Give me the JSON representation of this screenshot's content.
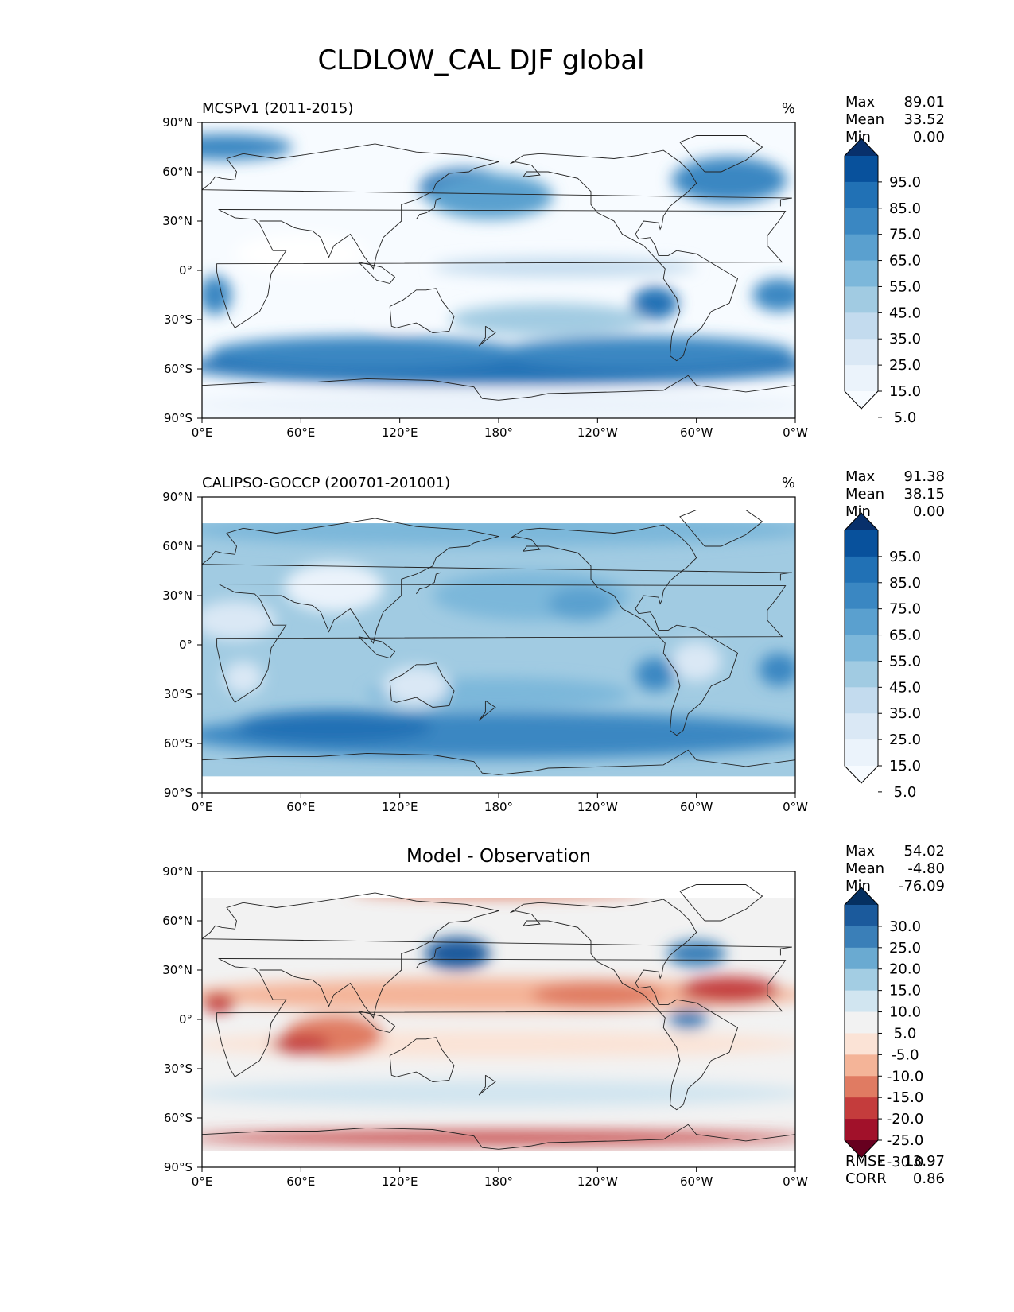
{
  "figure": {
    "title": "CLDLOW_CAL DJF global"
  },
  "panels": [
    {
      "id": "model",
      "left_label": "MCSPv1 (2011-2015)",
      "center_label": "",
      "units": "%",
      "stats": [
        {
          "label": "Max",
          "value": "89.01"
        },
        {
          "label": "Mean",
          "value": "33.52"
        },
        {
          "label": "Min",
          "value": "0.00"
        }
      ],
      "colorbar_ticks": [
        "95.0",
        "85.0",
        "75.0",
        "65.0",
        "55.0",
        "45.0",
        "35.0",
        "25.0",
        "15.0",
        "5.0"
      ],
      "colorbar_colors": [
        "#08306b",
        "#08519c",
        "#2171b5",
        "#3a87c2",
        "#5aa0cf",
        "#7cb7da",
        "#a1cbe2",
        "#c3dbee",
        "#dae8f5",
        "#ebf3fb",
        "#f7fbff"
      ],
      "bottom_stats": []
    },
    {
      "id": "obs",
      "left_label": "CALIPSO-GOCCP (200701-201001)",
      "center_label": "",
      "units": "%",
      "stats": [
        {
          "label": "Max",
          "value": "91.38"
        },
        {
          "label": "Mean",
          "value": "38.15"
        },
        {
          "label": "Min",
          "value": "0.00"
        }
      ],
      "colorbar_ticks": [
        "95.0",
        "85.0",
        "75.0",
        "65.0",
        "55.0",
        "45.0",
        "35.0",
        "25.0",
        "15.0",
        "5.0"
      ],
      "colorbar_colors": [
        "#08306b",
        "#08519c",
        "#2171b5",
        "#3a87c2",
        "#5aa0cf",
        "#7cb7da",
        "#a1cbe2",
        "#c3dbee",
        "#dae8f5",
        "#ebf3fb",
        "#f7fbff"
      ],
      "bottom_stats": []
    },
    {
      "id": "diff",
      "left_label": "",
      "center_label": "Model - Observation",
      "units": "",
      "stats": [
        {
          "label": "Max",
          "value": "54.02"
        },
        {
          "label": "Mean",
          "value": "-4.80"
        },
        {
          "label": "Min",
          "value": "-76.09"
        }
      ],
      "colorbar_ticks": [
        "30.0",
        "25.0",
        "20.0",
        "15.0",
        "10.0",
        "5.0",
        "-5.0",
        "-10.0",
        "-15.0",
        "-20.0",
        "-25.0",
        "-30.0"
      ],
      "colorbar_colors": [
        "#053061",
        "#1b5a9c",
        "#3a7fb8",
        "#6aaad1",
        "#a3cde3",
        "#d1e5f0",
        "#f2f2f2",
        "#fbe3d6",
        "#f4b498",
        "#e07b62",
        "#c43c3c",
        "#a1112a",
        "#67001f"
      ],
      "bottom_stats": [
        {
          "label": "RMSE",
          "value": "13.97"
        },
        {
          "label": "CORR",
          "value": "0.86"
        }
      ]
    }
  ],
  "axes": {
    "lon_ticks": [
      "0°E",
      "60°E",
      "120°E",
      "180°",
      "120°W",
      "60°W",
      "0°W"
    ],
    "lat_ticks": [
      "90°N",
      "60°N",
      "30°N",
      "0°",
      "30°S",
      "60°S",
      "90°S"
    ]
  },
  "map_fields": {
    "model": {
      "background": "#f7fbff",
      "blobs": [
        {
          "lon": 180,
          "lat": -58,
          "rx": 190,
          "ry": 12,
          "c": "#2171b5"
        },
        {
          "lon": 100,
          "lat": -50,
          "rx": 95,
          "ry": 10,
          "c": "#3a87c2"
        },
        {
          "lon": 270,
          "lat": -50,
          "rx": 90,
          "ry": 10,
          "c": "#3a87c2"
        },
        {
          "lon": 180,
          "lat": -82,
          "rx": 190,
          "ry": 8,
          "c": "#ebf3fb"
        },
        {
          "lon": 160,
          "lat": 50,
          "rx": 28,
          "ry": 12,
          "c": "#2171b5"
        },
        {
          "lon": 175,
          "lat": 45,
          "rx": 38,
          "ry": 14,
          "c": "#5aa0cf"
        },
        {
          "lon": 320,
          "lat": 55,
          "rx": 35,
          "ry": 14,
          "c": "#3a87c2"
        },
        {
          "lon": 15,
          "lat": 75,
          "rx": 40,
          "ry": 8,
          "c": "#3a87c2"
        },
        {
          "lon": 275,
          "lat": -20,
          "rx": 14,
          "ry": 10,
          "c": "#2171b5"
        },
        {
          "lon": 350,
          "lat": -15,
          "rx": 16,
          "ry": 10,
          "c": "#3a87c2"
        },
        {
          "lon": 8,
          "lat": -15,
          "rx": 10,
          "ry": 12,
          "c": "#3a87c2"
        },
        {
          "lon": 220,
          "lat": 2,
          "rx": 80,
          "ry": 6,
          "c": "#c3dbee"
        },
        {
          "lon": 60,
          "lat": 10,
          "rx": 40,
          "ry": 12,
          "c": "#ffffff"
        },
        {
          "lon": 120,
          "lat": -25,
          "rx": 18,
          "ry": 10,
          "c": "#f7fbff"
        },
        {
          "lon": 210,
          "lat": -30,
          "rx": 60,
          "ry": 10,
          "c": "#a1cbe2"
        }
      ]
    },
    "obs": {
      "background": "#a1cbe2",
      "blobs": [
        {
          "lon": 180,
          "lat": -55,
          "rx": 190,
          "ry": 14,
          "c": "#3a87c2"
        },
        {
          "lon": 80,
          "lat": -50,
          "rx": 60,
          "ry": 10,
          "c": "#2171b5"
        },
        {
          "lon": 180,
          "lat": -30,
          "rx": 80,
          "ry": 10,
          "c": "#7cb7da"
        },
        {
          "lon": 200,
          "lat": 30,
          "rx": 60,
          "ry": 15,
          "c": "#7cb7da"
        },
        {
          "lon": 230,
          "lat": 25,
          "rx": 20,
          "ry": 10,
          "c": "#5aa0cf"
        },
        {
          "lon": 275,
          "lat": -18,
          "rx": 12,
          "ry": 10,
          "c": "#3a87c2"
        },
        {
          "lon": 350,
          "lat": -15,
          "rx": 12,
          "ry": 10,
          "c": "#3a87c2"
        },
        {
          "lon": 20,
          "lat": 15,
          "rx": 25,
          "ry": 12,
          "c": "#dae8f5"
        },
        {
          "lon": 80,
          "lat": 35,
          "rx": 30,
          "ry": 15,
          "c": "#ebf3fb"
        },
        {
          "lon": 130,
          "lat": -25,
          "rx": 20,
          "ry": 12,
          "c": "#dae8f5"
        },
        {
          "lon": 25,
          "lat": -20,
          "rx": 12,
          "ry": 10,
          "c": "#dae8f5"
        },
        {
          "lon": 300,
          "lat": -10,
          "rx": 15,
          "ry": 12,
          "c": "#dae8f5"
        },
        {
          "lon": 180,
          "lat": 70,
          "rx": 190,
          "ry": 10,
          "c": "#7cb7da"
        }
      ]
    },
    "diff": {
      "background": "#f2f2f2",
      "blobs": [
        {
          "lon": 180,
          "lat": 15,
          "rx": 190,
          "ry": 10,
          "c": "#f4b498"
        },
        {
          "lon": 180,
          "lat": -15,
          "rx": 190,
          "ry": 8,
          "c": "#fbe3d6"
        },
        {
          "lon": 80,
          "lat": -10,
          "rx": 30,
          "ry": 12,
          "c": "#e07b62"
        },
        {
          "lon": 60,
          "lat": -15,
          "rx": 18,
          "ry": 6,
          "c": "#c43c3c"
        },
        {
          "lon": 320,
          "lat": 18,
          "rx": 30,
          "ry": 8,
          "c": "#c43c3c"
        },
        {
          "lon": 240,
          "lat": 15,
          "rx": 40,
          "ry": 8,
          "c": "#e07b62"
        },
        {
          "lon": 155,
          "lat": 40,
          "rx": 20,
          "ry": 10,
          "c": "#1b5a9c"
        },
        {
          "lon": 300,
          "lat": 40,
          "rx": 18,
          "ry": 8,
          "c": "#3a7fb8"
        },
        {
          "lon": 295,
          "lat": 0,
          "rx": 12,
          "ry": 6,
          "c": "#3a7fb8"
        },
        {
          "lon": 180,
          "lat": -45,
          "rx": 190,
          "ry": 8,
          "c": "#d1e5f0"
        },
        {
          "lon": 180,
          "lat": -72,
          "rx": 190,
          "ry": 4,
          "c": "#c43c3c"
        },
        {
          "lon": 180,
          "lat": 78,
          "rx": 90,
          "ry": 4,
          "c": "#e07b62"
        },
        {
          "lon": 10,
          "lat": 10,
          "rx": 10,
          "ry": 6,
          "c": "#c43c3c"
        }
      ]
    }
  },
  "coastlines": [
    [
      [
        -17,
        15
      ],
      [
        -17,
        21
      ],
      [
        -10,
        30
      ],
      [
        -6,
        36
      ],
      [
        10,
        37
      ],
      [
        20,
        32
      ],
      [
        32,
        31
      ],
      [
        35,
        28
      ],
      [
        43,
        12
      ],
      [
        51,
        12
      ],
      [
        42,
        -2
      ],
      [
        40,
        -15
      ],
      [
        35,
        -25
      ],
      [
        20,
        -35
      ],
      [
        17,
        -30
      ],
      [
        12,
        -15
      ],
      [
        9,
        -1
      ],
      [
        9,
        4
      ],
      [
        -8,
        5
      ],
      [
        -17,
        15
      ]
    ],
    [
      [
        -9,
        39
      ],
      [
        -9,
        43
      ],
      [
        -2,
        44
      ],
      [
        0,
        49
      ],
      [
        5,
        53
      ],
      [
        8,
        57
      ],
      [
        12,
        56
      ],
      [
        20,
        55
      ],
      [
        21,
        60
      ],
      [
        15,
        68
      ],
      [
        25,
        71
      ],
      [
        45,
        68
      ],
      [
        60,
        70
      ],
      [
        80,
        73
      ],
      [
        105,
        77
      ],
      [
        130,
        72
      ],
      [
        160,
        70
      ],
      [
        180,
        66
      ]
    ],
    [
      [
        35,
        30
      ],
      [
        48,
        30
      ],
      [
        56,
        26
      ],
      [
        60,
        25
      ],
      [
        67,
        24
      ],
      [
        72,
        20
      ],
      [
        77,
        8
      ],
      [
        80,
        15
      ],
      [
        90,
        22
      ],
      [
        94,
        16
      ],
      [
        98,
        9
      ],
      [
        104,
        1
      ],
      [
        106,
        10
      ],
      [
        110,
        20
      ],
      [
        121,
        30
      ],
      [
        121,
        40
      ],
      [
        130,
        43
      ],
      [
        140,
        48
      ],
      [
        142,
        53
      ],
      [
        150,
        59
      ],
      [
        162,
        60
      ],
      [
        165,
        62
      ],
      [
        180,
        66
      ]
    ],
    [
      [
        114,
        -22
      ],
      [
        115,
        -34
      ],
      [
        118,
        -35
      ],
      [
        130,
        -32
      ],
      [
        140,
        -38
      ],
      [
        150,
        -37
      ],
      [
        153,
        -28
      ],
      [
        146,
        -19
      ],
      [
        142,
        -11
      ],
      [
        136,
        -12
      ],
      [
        130,
        -12
      ],
      [
        122,
        -18
      ],
      [
        114,
        -22
      ]
    ],
    [
      [
        130,
        31
      ],
      [
        132,
        34
      ],
      [
        136,
        35
      ],
      [
        141,
        38
      ],
      [
        142,
        43
      ],
      [
        145,
        44
      ]
    ],
    [
      [
        95,
        5
      ],
      [
        106,
        -6
      ],
      [
        114,
        -8
      ],
      [
        117,
        -4
      ],
      [
        109,
        2
      ],
      [
        95,
        5
      ]
    ],
    [
      [
        172,
        -34
      ],
      [
        178,
        -38
      ],
      [
        174,
        -41
      ],
      [
        168,
        -46
      ],
      [
        172,
        -41
      ],
      [
        172,
        -34
      ]
    ],
    [
      [
        187,
        65
      ],
      [
        195,
        70
      ],
      [
        205,
        71
      ],
      [
        220,
        70
      ],
      [
        235,
        69
      ],
      [
        250,
        68
      ],
      [
        265,
        70
      ],
      [
        280,
        73
      ],
      [
        290,
        66
      ],
      [
        296,
        60
      ],
      [
        300,
        53
      ],
      [
        294,
        47
      ],
      [
        290,
        44
      ],
      [
        284,
        39
      ],
      [
        280,
        33
      ],
      [
        279,
        27
      ],
      [
        278,
        25
      ],
      [
        277,
        29
      ],
      [
        268,
        30
      ],
      [
        263,
        22
      ],
      [
        265,
        19
      ],
      [
        272,
        20
      ],
      [
        275,
        15
      ],
      [
        277,
        9
      ],
      [
        283,
        9
      ],
      [
        288,
        12
      ],
      [
        300,
        10
      ],
      [
        310,
        4
      ],
      [
        325,
        -5
      ],
      [
        320,
        -20
      ],
      [
        309,
        -25
      ],
      [
        303,
        -35
      ],
      [
        295,
        -42
      ],
      [
        292,
        -52
      ],
      [
        288,
        -55
      ],
      [
        284,
        -52
      ],
      [
        285,
        -40
      ],
      [
        290,
        -25
      ],
      [
        288,
        -17
      ],
      [
        280,
        -5
      ],
      [
        281,
        1
      ],
      [
        268,
        15
      ],
      [
        255,
        22
      ],
      [
        250,
        30
      ],
      [
        240,
        35
      ],
      [
        236,
        40
      ],
      [
        236,
        48
      ],
      [
        228,
        56
      ],
      [
        210,
        60
      ],
      [
        197,
        60
      ],
      [
        195,
        57
      ],
      [
        205,
        58
      ],
      [
        200,
        64
      ],
      [
        190,
        66
      ],
      [
        187,
        65
      ]
    ],
    [
      [
        305,
        60
      ],
      [
        315,
        60
      ],
      [
        330,
        67
      ],
      [
        340,
        75
      ],
      [
        330,
        82
      ],
      [
        300,
        82
      ],
      [
        290,
        78
      ],
      [
        305,
        60
      ]
    ],
    [
      [
        0,
        -70
      ],
      [
        40,
        -68
      ],
      [
        70,
        -68
      ],
      [
        100,
        -66
      ],
      [
        140,
        -67
      ],
      [
        165,
        -71
      ],
      [
        170,
        -78
      ],
      [
        180,
        -79
      ],
      [
        200,
        -77
      ],
      [
        210,
        -75
      ],
      [
        250,
        -74
      ],
      [
        280,
        -73
      ],
      [
        295,
        -64
      ],
      [
        300,
        -70
      ],
      [
        330,
        -74
      ],
      [
        360,
        -70
      ]
    ]
  ]
}
